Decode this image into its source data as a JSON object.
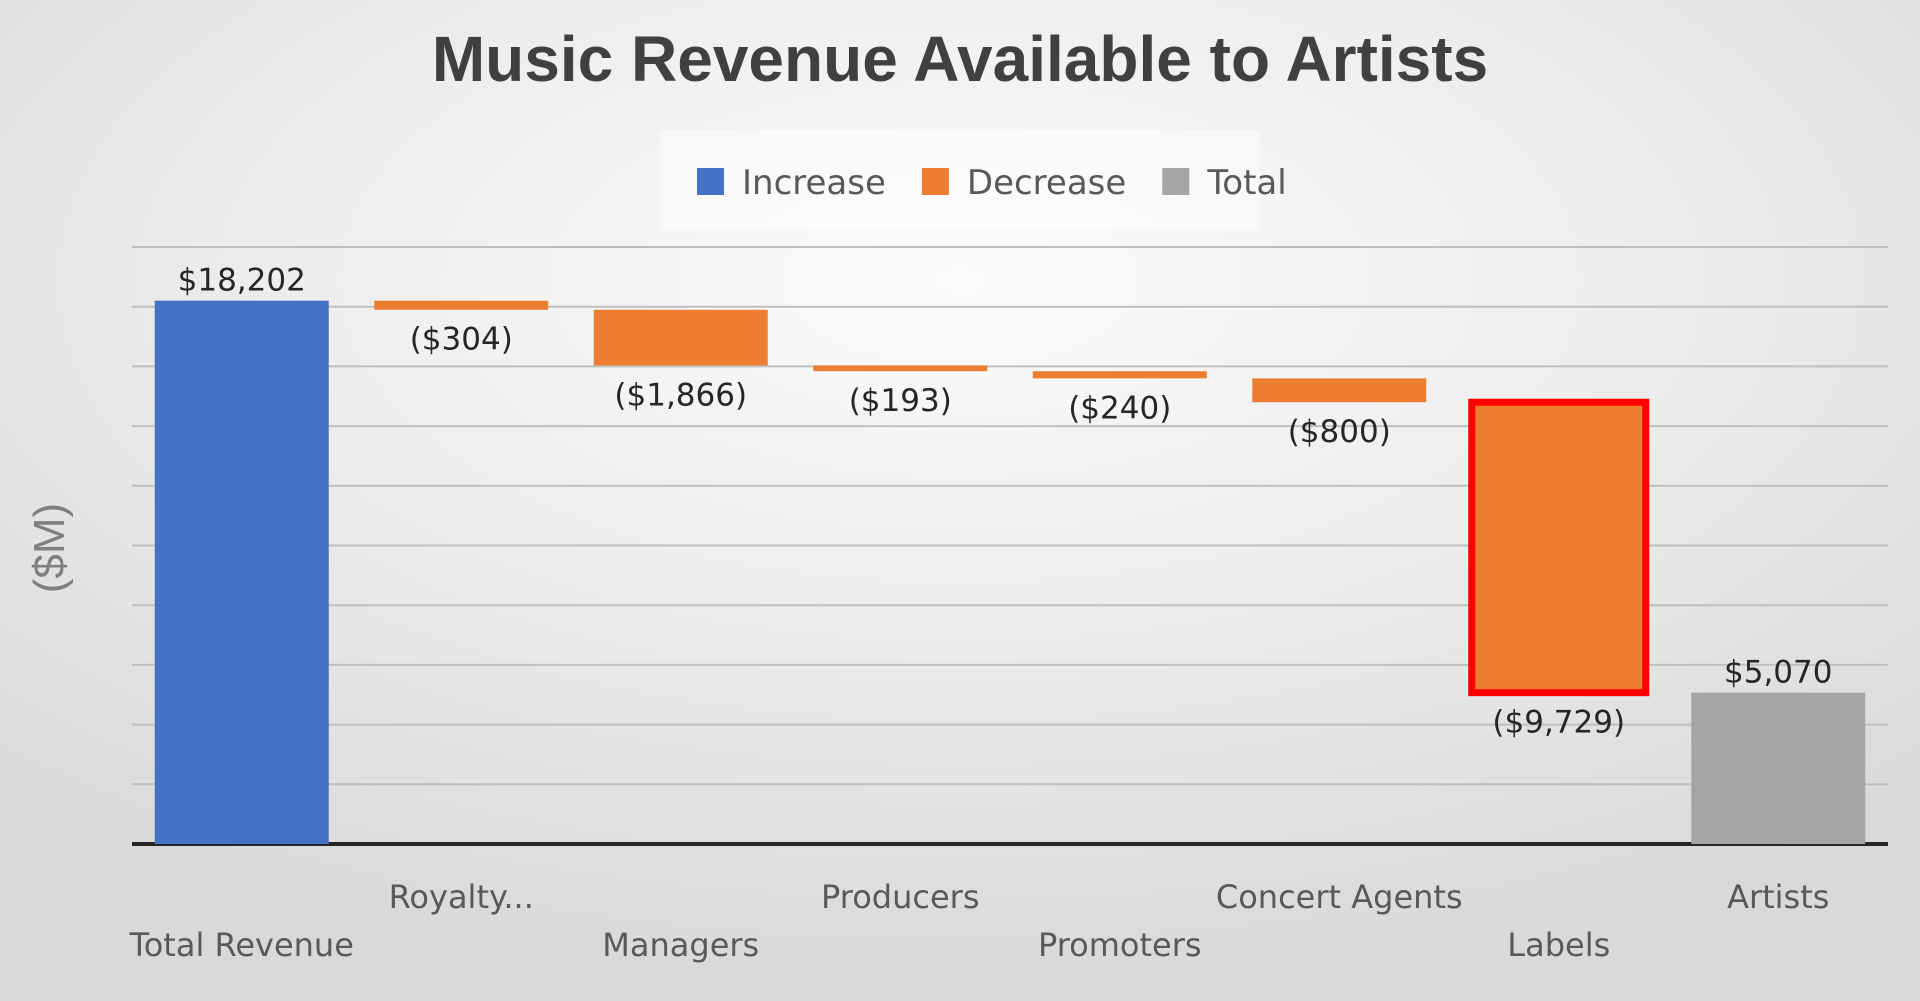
{
  "chart_data": {
    "type": "bar",
    "subtype": "waterfall",
    "title": "Music Revenue Available to Artists",
    "ylabel": "($M)",
    "xlabel": "",
    "ylim": [
      0,
      20000
    ],
    "grid": true,
    "legend": {
      "position": "top",
      "entries": [
        {
          "name": "Increase",
          "color": "#4472C4"
        },
        {
          "name": "Decrease",
          "color": "#ED7D31"
        },
        {
          "name": "Total",
          "color": "#A5A5A5"
        }
      ]
    },
    "categories": [
      "Total Revenue",
      "Royalty...",
      "Managers",
      "Producers",
      "Promoters",
      "Concert Agents",
      "Labels",
      "Artists"
    ],
    "values": [
      18202,
      -304,
      -1866,
      -193,
      -240,
      -800,
      -9729,
      5070
    ],
    "bar_kinds": [
      "increase",
      "decrease",
      "decrease",
      "decrease",
      "decrease",
      "decrease",
      "decrease",
      "total"
    ],
    "data_labels": [
      "$18,202",
      "($304)",
      "($1,866)",
      "($193)",
      "($240)",
      "($800)",
      "($9,729)",
      "$5,070"
    ],
    "highlighted_category": "Labels",
    "highlight_color": "#FF0000"
  }
}
